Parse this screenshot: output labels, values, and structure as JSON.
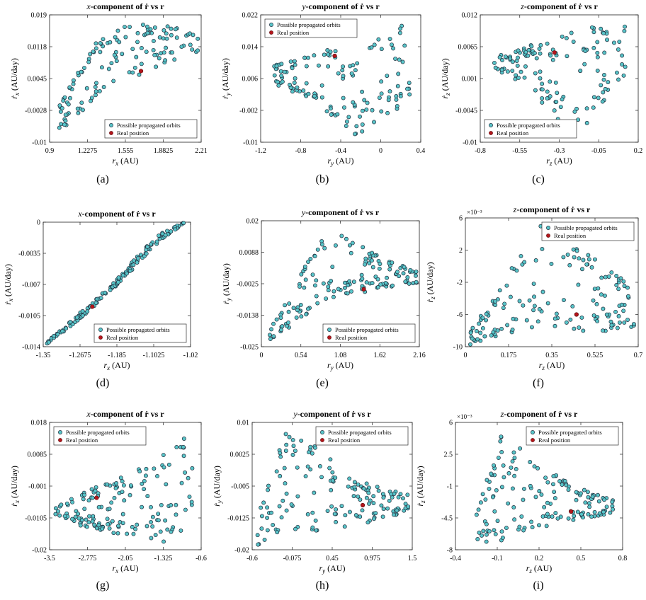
{
  "colors": {
    "point_fill": "#58c4c8",
    "point_stroke": "#1f2b3a",
    "real_fill": "#b3151b",
    "axis": "#222222",
    "legend_border": "#333333"
  },
  "legend": {
    "orbits": "Possible propagated orbits",
    "real": "Real position"
  },
  "chart_data": [
    {
      "type": "scatter",
      "title_prefix": "x",
      "title_suffix": "-component of ṙ vs r",
      "xlabel_sym": "r",
      "xlabel_sub": "x",
      "xlabel_unit": " (AU)",
      "ylabel_sym": "ṙ",
      "ylabel_sub": "x",
      "ylabel_unit": " (AU/day)",
      "caption": "(a)",
      "xlim": [
        0.9,
        2.21
      ],
      "ylim": [
        -0.01,
        0.019
      ],
      "xticks": [
        "0.9",
        "1.2275",
        "1.555",
        "1.8825",
        "2.21"
      ],
      "yticks": [
        "-0.01",
        "-0.0028",
        "0.0045",
        "0.0118",
        "0.019"
      ],
      "legend_position": "bottom-right",
      "exponent": "",
      "real": [
        1.69,
        0.0062
      ],
      "seed": 11,
      "shape": {
        "kind": "band",
        "x0": 0.96,
        "x1": 2.19,
        "lo": [
          -0.008,
          -0.0015,
          0.004,
          0.008,
          0.0105
        ],
        "hi": [
          -0.003,
          0.012,
          0.017,
          0.0172,
          0.014
        ],
        "n": 130
      }
    },
    {
      "type": "scatter",
      "title_prefix": "y",
      "title_suffix": "-component of ṙ vs r",
      "xlabel_sym": "r",
      "xlabel_sub": "y",
      "xlabel_unit": " (AU)",
      "ylabel_sym": "ṙ",
      "ylabel_sub": "y",
      "ylabel_unit": " (AU/day)",
      "caption": "(b)",
      "xlim": [
        -1.2,
        0.4
      ],
      "ylim": [
        -0.01,
        0.022
      ],
      "xticks": [
        "-1.2",
        "-0.8",
        "-0.4",
        "0",
        "0.4"
      ],
      "yticks": [
        "-0.01",
        "-0.002",
        "0.006",
        "0.014",
        "0.022"
      ],
      "legend_position": "top-left",
      "exponent": "",
      "real": [
        -0.46,
        0.0117
      ],
      "seed": 23,
      "shape": {
        "kind": "band",
        "x0": -1.1,
        "x1": 0.29,
        "lo": [
          0.005,
          0.002,
          -0.003,
          -0.008,
          -0.006,
          0.002
        ],
        "hi": [
          0.009,
          0.012,
          0.014,
          0.011,
          0.018,
          0.02
        ],
        "n": 135
      }
    },
    {
      "type": "scatter",
      "title_prefix": "z",
      "title_suffix": "-component of ṙ vs r",
      "xlabel_sym": "r",
      "xlabel_sub": "z",
      "xlabel_unit": " (AU)",
      "ylabel_sym": "ṙ",
      "ylabel_sub": "z",
      "ylabel_unit": " (AU/day)",
      "caption": "(c)",
      "xlim": [
        -0.8,
        0.2
      ],
      "ylim": [
        -0.01,
        0.012
      ],
      "xticks": [
        "-0.8",
        "-0.55",
        "-0.3",
        "-0.05",
        "0.2"
      ],
      "yticks": [
        "-0.01",
        "-0.0045",
        "0.001",
        "0.0065",
        "0.012"
      ],
      "legend_position": "bottom-left",
      "exponent": "",
      "real": [
        -0.33,
        0.0055
      ],
      "seed": 37,
      "shape": {
        "kind": "band",
        "x0": -0.72,
        "x1": 0.12,
        "lo": [
          0.003,
          0.0,
          -0.004,
          -0.009,
          -0.005,
          0.002
        ],
        "hi": [
          0.005,
          0.006,
          0.008,
          0.009,
          0.0105,
          0.01
        ],
        "n": 135
      }
    },
    {
      "type": "scatter",
      "title_prefix": "x",
      "title_suffix": "-component of ṙ vs r",
      "xlabel_sym": "r",
      "xlabel_sub": "x",
      "xlabel_unit": " (AU)",
      "ylabel_sym": "ṙ",
      "ylabel_sub": "x",
      "ylabel_unit": " (AU/day)",
      "caption": "(d)",
      "xlim": [
        -1.35,
        -1.02
      ],
      "ylim": [
        -0.014,
        0
      ],
      "xticks": [
        "-1.35",
        "-1.2675",
        "-1.185",
        "-1.1025",
        "-1.02"
      ],
      "yticks": [
        "-0.014",
        "-0.0105",
        "-0.007",
        "-0.0035",
        "0"
      ],
      "legend_position": "bottom-right",
      "exponent": "",
      "real": [
        -1.24,
        -0.0095
      ],
      "seed": 41,
      "shape": {
        "kind": "line",
        "x0": -1.345,
        "x1": -1.035,
        "lo": [
          -0.0138,
          -0.0115,
          -0.0088,
          -0.0058,
          -0.0025,
          -0.0001
        ],
        "hi": [
          -0.0136,
          -0.0109,
          -0.0082,
          -0.005,
          -0.0015,
          0.0
        ],
        "n": 150
      }
    },
    {
      "type": "scatter",
      "title_prefix": "y",
      "title_suffix": "-component of ṙ vs r",
      "xlabel_sym": "r",
      "xlabel_sub": "y",
      "xlabel_unit": " (AU)",
      "ylabel_sym": "ṙ",
      "ylabel_sub": "y",
      "ylabel_unit": " (AU/day)",
      "caption": "(e)",
      "xlim": [
        0,
        2.16
      ],
      "ylim": [
        -0.025,
        0.02
      ],
      "xticks": [
        "0",
        "0.54",
        "1.08",
        "1.62",
        "2.16"
      ],
      "yticks": [
        "-0.025",
        "-0.0138",
        "-0.0025",
        "0.0088",
        "0.02"
      ],
      "legend_position": "bottom-right",
      "exponent": "",
      "real": [
        1.4,
        -0.0045
      ],
      "seed": 53,
      "shape": {
        "kind": "band",
        "x0": 0.1,
        "x1": 2.12,
        "lo": [
          -0.023,
          -0.016,
          -0.008,
          -0.006,
          -0.004,
          -0.003
        ],
        "hi": [
          -0.02,
          0.0,
          0.018,
          0.012,
          0.006,
          0.002
        ],
        "n": 150
      }
    },
    {
      "type": "scatter",
      "title_prefix": "z",
      "title_suffix": "-component of ṙ vs r",
      "xlabel_sym": "r",
      "xlabel_sub": "z",
      "xlabel_unit": " (AU)",
      "ylabel_sym": "ṙ",
      "ylabel_sub": "z",
      "ylabel_unit": " (AU/day)",
      "caption": "(f)",
      "xlim": [
        0,
        0.7
      ],
      "ylim": [
        -10,
        6
      ],
      "xticks": [
        "0",
        "0.175",
        "0.35",
        "0.525",
        "0.7"
      ],
      "yticks": [
        "-10",
        "-6",
        "-2",
        "2",
        "6"
      ],
      "legend_position": "top-right",
      "exponent": "×10⁻³",
      "real": [
        0.45,
        -6
      ],
      "seed": 67,
      "shape": {
        "kind": "band",
        "x0": 0.02,
        "x1": 0.69,
        "lo": [
          -9.8,
          -8.5,
          -7.5,
          -8.0,
          -8.2,
          -7.5
        ],
        "hi": [
          -8.0,
          -2.0,
          5.5,
          3.0,
          0.5,
          -3.0
        ],
        "n": 150
      }
    },
    {
      "type": "scatter",
      "title_prefix": "x",
      "title_suffix": "-component of ṙ vs r",
      "xlabel_sym": "r",
      "xlabel_sub": "x",
      "xlabel_unit": " (AU)",
      "ylabel_sym": "ṙ",
      "ylabel_sub": "x",
      "ylabel_unit": " (AU/day)",
      "caption": "(g)",
      "xlim": [
        -3.5,
        -0.6
      ],
      "ylim": [
        -0.02,
        0.018
      ],
      "xticks": [
        "-3.5",
        "-2.775",
        "-2.05",
        "-1.325",
        "-0.6"
      ],
      "yticks": [
        "-0.02",
        "-0.0105",
        "-0.001",
        "0.0085",
        "0.018"
      ],
      "legend_position": "top-left",
      "exponent": "",
      "real": [
        -2.6,
        -0.0045
      ],
      "seed": 79,
      "shape": {
        "kind": "band",
        "x0": -3.4,
        "x1": -0.75,
        "lo": [
          -0.01,
          -0.013,
          -0.015,
          -0.016,
          -0.018,
          -0.012
        ],
        "hi": [
          -0.007,
          -0.003,
          0.001,
          0.004,
          0.009,
          0.016
        ],
        "n": 150
      }
    },
    {
      "type": "scatter",
      "title_prefix": "y",
      "title_suffix": "-component of ṙ vs r",
      "xlabel_sym": "r",
      "xlabel_sub": "y",
      "xlabel_unit": " (AU)",
      "ylabel_sym": "ṙ",
      "ylabel_sub": "y",
      "ylabel_unit": " (AU/day)",
      "caption": "(h)",
      "xlim": [
        -0.6,
        1.5
      ],
      "ylim": [
        -0.02,
        0.01
      ],
      "xticks": [
        "-0.6",
        "-0.075",
        "0.45",
        "0.975",
        "1.5"
      ],
      "yticks": [
        "-0.02",
        "-0.0125",
        "-0.005",
        "0.0025",
        "0.01"
      ],
      "legend_position": "top-right",
      "exponent": "",
      "real": [
        0.85,
        -0.0095
      ],
      "seed": 97,
      "shape": {
        "kind": "band",
        "x0": -0.55,
        "x1": 1.45,
        "lo": [
          -0.019,
          -0.016,
          -0.016,
          -0.015,
          -0.013,
          -0.011
        ],
        "hi": [
          -0.012,
          0.009,
          0.004,
          -0.002,
          -0.005,
          -0.007
        ],
        "n": 150
      }
    },
    {
      "type": "scatter",
      "title_prefix": "z",
      "title_suffix": "-component of ṙ vs r",
      "xlabel_sym": "r",
      "xlabel_sub": "z",
      "xlabel_unit": " (AU)",
      "ylabel_sym": "ṙ",
      "ylabel_sub": "z",
      "ylabel_unit": " (AU/day)",
      "caption": "(i)",
      "xlim": [
        -0.4,
        0.8
      ],
      "ylim": [
        -8,
        6
      ],
      "xticks": [
        "-0.4",
        "-0.1",
        "0.2",
        "0.5",
        "0.8"
      ],
      "yticks": [
        "-8",
        "-4.5",
        "-1",
        "2.5",
        "6"
      ],
      "legend_position": "top-right",
      "exponent": "×10⁻³",
      "real": [
        0.43,
        -3.8
      ],
      "seed": 113,
      "shape": {
        "kind": "band",
        "x0": -0.25,
        "x1": 0.73,
        "lo": [
          -7.5,
          -7.0,
          -6.0,
          -5.0,
          -4.5,
          -4.0
        ],
        "hi": [
          -4.0,
          5.5,
          2.5,
          0.0,
          -1.5,
          -2.5
        ],
        "n": 150
      }
    }
  ]
}
